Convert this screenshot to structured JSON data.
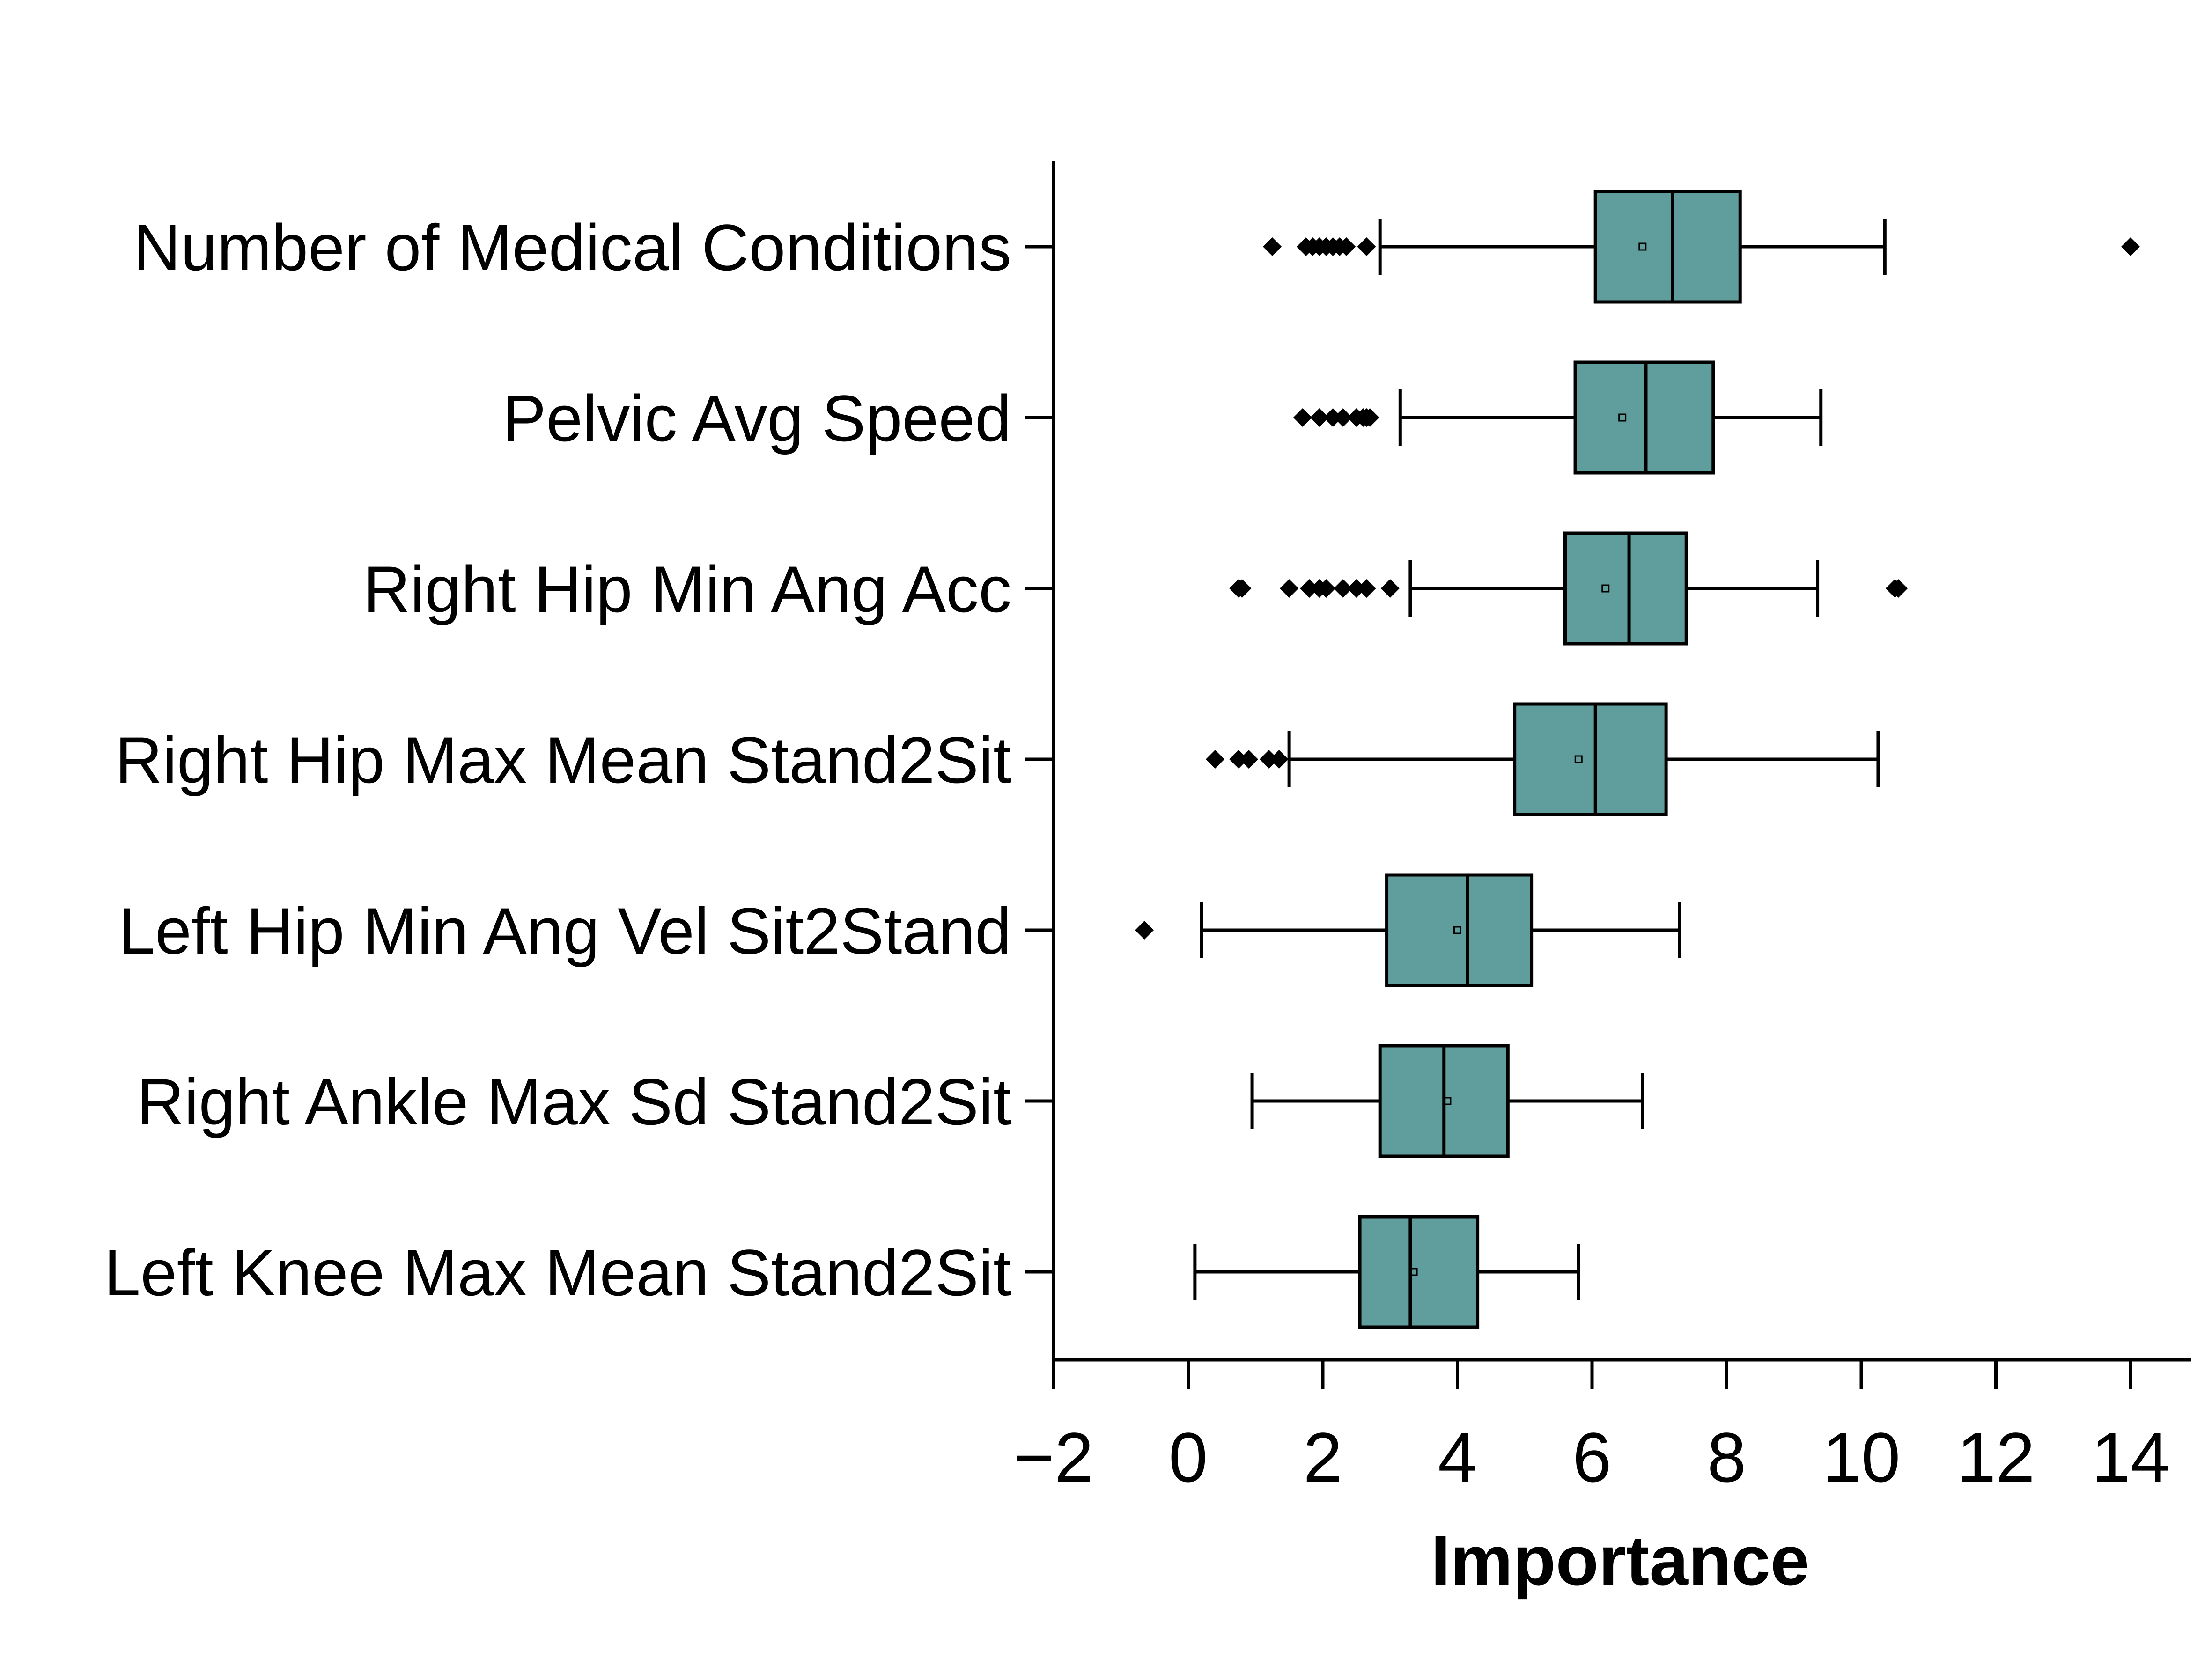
{
  "chart_data": {
    "type": "boxplot",
    "orientation": "horizontal",
    "xlabel": "Importance",
    "ylabel": "",
    "xlim": [
      -2,
      15
    ],
    "xticks": [
      -2,
      0,
      2,
      4,
      6,
      8,
      10,
      12,
      14
    ],
    "xtick_labels": [
      "−2",
      "0",
      "2",
      "4",
      "6",
      "8",
      "10",
      "12",
      "14"
    ],
    "box_color": "#5f9e9c",
    "edge_color": "#000000",
    "grid": false,
    "legend": "none",
    "categories": [
      "Number of Medical Conditions",
      "Pelvic Avg Speed",
      "Right Hip Min Ang Acc",
      "Right Hip Max Mean Stand2Sit",
      "Left Hip Min Ang Vel Sit2Stand",
      "Right Ankle Max Sd Stand2Sit",
      "Left Knee Max Mean Stand2Sit"
    ],
    "boxes": [
      {
        "label": "Number of Medical Conditions",
        "whisker_low": 2.85,
        "q1": 6.05,
        "median": 7.2,
        "q3": 8.2,
        "whisker_high": 10.35,
        "mean": 6.75,
        "outliers": [
          1.25,
          1.75,
          1.85,
          1.95,
          2.05,
          2.15,
          2.25,
          2.35,
          2.65,
          14.0
        ]
      },
      {
        "label": "Pelvic Avg Speed",
        "whisker_low": 3.15,
        "q1": 5.75,
        "median": 6.8,
        "q3": 7.8,
        "whisker_high": 9.4,
        "mean": 6.45,
        "outliers": [
          1.7,
          1.95,
          2.15,
          2.3,
          2.5,
          2.6,
          2.65,
          2.7
        ]
      },
      {
        "label": "Right Hip Min Ang Acc",
        "whisker_low": 3.3,
        "q1": 5.6,
        "median": 6.55,
        "q3": 7.4,
        "whisker_high": 9.35,
        "mean": 6.2,
        "outliers": [
          0.75,
          0.8,
          1.5,
          1.8,
          1.95,
          2.05,
          2.3,
          2.5,
          2.65,
          3.0,
          10.5,
          10.55
        ]
      },
      {
        "label": "Right Hip Max Mean Stand2Sit",
        "whisker_low": 1.5,
        "q1": 4.85,
        "median": 6.05,
        "q3": 7.1,
        "whisker_high": 10.25,
        "mean": 5.8,
        "outliers": [
          0.4,
          0.75,
          0.9,
          1.2,
          1.35
        ]
      },
      {
        "label": "Left Hip Min Ang Vel Sit2Stand",
        "whisker_low": 0.2,
        "q1": 2.95,
        "median": 4.15,
        "q3": 5.1,
        "whisker_high": 7.3,
        "mean": 4.0,
        "outliers": [
          -0.65
        ]
      },
      {
        "label": "Right Ankle Max Sd Stand2Sit",
        "whisker_low": 0.95,
        "q1": 2.85,
        "median": 3.8,
        "q3": 4.75,
        "whisker_high": 6.75,
        "mean": 3.85,
        "outliers": []
      },
      {
        "label": "Left Knee Max Mean Stand2Sit",
        "whisker_low": 0.1,
        "q1": 2.55,
        "median": 3.3,
        "q3": 4.3,
        "whisker_high": 5.8,
        "mean": 3.35,
        "outliers": []
      }
    ]
  }
}
